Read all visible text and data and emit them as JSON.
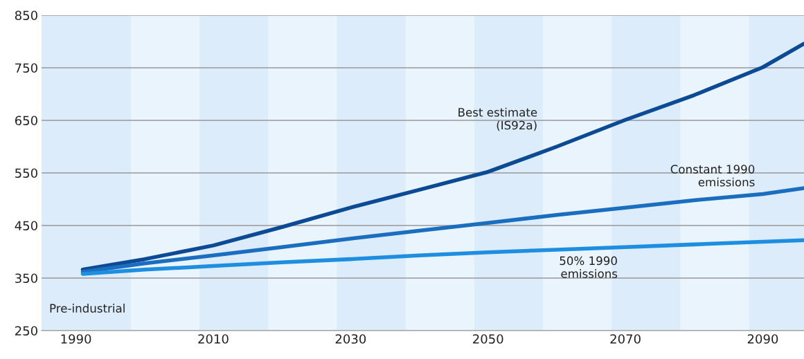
{
  "chart_data": {
    "type": "line",
    "xlim": [
      1985,
      2096
    ],
    "xticks": [
      1990,
      2010,
      2030,
      2050,
      2070,
      2090
    ],
    "ylim": [
      250,
      850
    ],
    "yticks": [
      250,
      350,
      450,
      550,
      650,
      750,
      850
    ],
    "grid": "y",
    "legend": false,
    "marker": "none",
    "line_style": "solid",
    "series": [
      {
        "name": "Best estimate (IS92a)",
        "color": "#0b4a94",
        "x": [
          1991,
          2000,
          2010,
          2020,
          2030,
          2040,
          2050,
          2060,
          2070,
          2080,
          2090,
          2096
        ],
        "values": [
          366,
          386,
          412,
          447,
          484,
          518,
          552,
          600,
          651,
          698,
          751,
          796
        ]
      },
      {
        "name": "Constant 1990 emissions",
        "color": "#1a6ec0",
        "x": [
          1991,
          2000,
          2010,
          2020,
          2030,
          2040,
          2050,
          2060,
          2070,
          2080,
          2090,
          2096
        ],
        "values": [
          362,
          378,
          393,
          409,
          425,
          440,
          455,
          470,
          484,
          498,
          510,
          521
        ]
      },
      {
        "name": "50% 1990 emissions",
        "color": "#1e8fe0",
        "x": [
          1991,
          2000,
          2010,
          2020,
          2030,
          2040,
          2050,
          2060,
          2070,
          2080,
          2090,
          2096
        ],
        "values": [
          358,
          366,
          373,
          380,
          386,
          393,
          399,
          404,
          409,
          414,
          419,
          422
        ]
      }
    ],
    "annotations": [
      "Pre-industrial"
    ],
    "bands": [
      {
        "axis": "x",
        "from": 1985,
        "to": 1998,
        "color": "#dcecfa"
      },
      {
        "axis": "x",
        "from": 2008,
        "to": 2018,
        "color": "#dcecfa"
      },
      {
        "axis": "x",
        "from": 2028,
        "to": 2038,
        "color": "#dcecfa"
      },
      {
        "axis": "x",
        "from": 2048,
        "to": 2058,
        "color": "#dcecfa"
      },
      {
        "axis": "x",
        "from": 2068,
        "to": 2078,
        "color": "#dcecfa"
      },
      {
        "axis": "x",
        "from": 2088,
        "to": 2096,
        "color": "#dcecfa"
      }
    ]
  }
}
